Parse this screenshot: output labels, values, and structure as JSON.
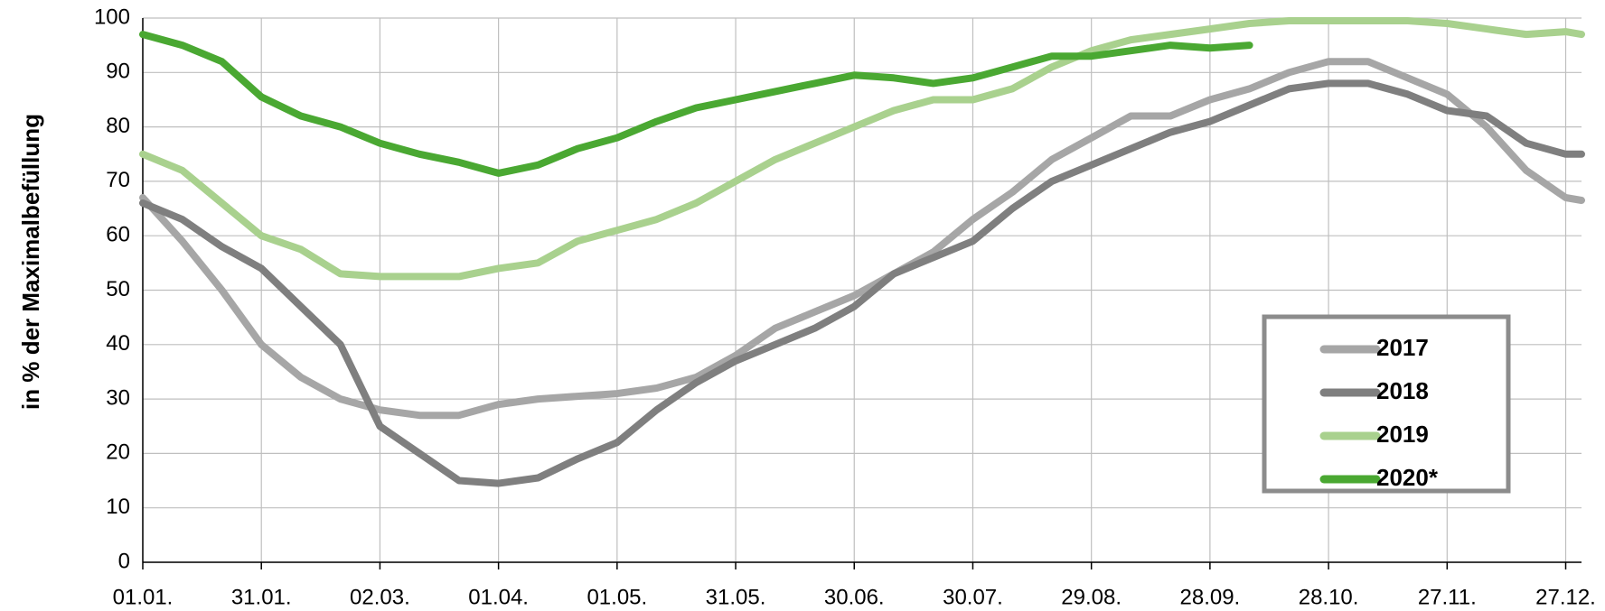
{
  "chart_data": {
    "type": "line",
    "y_label": "in % der Maximalbefüllung",
    "x": [
      0,
      10,
      20,
      30,
      40,
      50,
      60,
      70,
      80,
      90,
      100,
      110,
      120,
      130,
      140,
      150,
      160,
      170,
      180,
      190,
      200,
      210,
      220,
      230,
      240,
      250,
      260,
      270,
      280,
      290,
      300,
      310,
      320,
      330,
      340,
      350,
      360,
      364
    ],
    "series": [
      {
        "name": "2017",
        "color": "#a6a6a6",
        "values": [
          67,
          59,
          50,
          40,
          34,
          30,
          28,
          27,
          27,
          29,
          30,
          30.5,
          31,
          32,
          34,
          38,
          43,
          46,
          49,
          53,
          57,
          63,
          68,
          74,
          78,
          82,
          82,
          85,
          87,
          90,
          92,
          92,
          89,
          86,
          80,
          72,
          67,
          66.5
        ]
      },
      {
        "name": "2018",
        "color": "#7f7f7f",
        "values": [
          66,
          63,
          58,
          54,
          47,
          40,
          25,
          20,
          15,
          14.5,
          15.5,
          19,
          22,
          28,
          33,
          37,
          40,
          43,
          47,
          53,
          56,
          59,
          65,
          70,
          73,
          76,
          79,
          81,
          84,
          87,
          88,
          88,
          86,
          83,
          82,
          77,
          75,
          75
        ]
      },
      {
        "name": "2019",
        "color": "#a9d18e",
        "values": [
          75,
          72,
          66,
          60,
          57.5,
          53,
          52.5,
          52.5,
          52.5,
          54,
          55,
          59,
          61,
          63,
          66,
          70,
          74,
          77,
          80,
          83,
          85,
          85,
          87,
          91,
          94,
          96,
          97,
          98,
          99,
          99.5,
          99.5,
          99.5,
          99.5,
          99,
          98,
          97,
          97.5,
          97
        ]
      },
      {
        "name": "2020*",
        "color": "#4aa832",
        "values": [
          97,
          95,
          92,
          85.5,
          82,
          80,
          77,
          75,
          73.5,
          71.5,
          73,
          76,
          78,
          81,
          83.5,
          85,
          86.5,
          88,
          89.5,
          89,
          88,
          89,
          91,
          93,
          93,
          94,
          95,
          94.5,
          95,
          null,
          null,
          null,
          null,
          null,
          null,
          null,
          null,
          null
        ]
      }
    ],
    "xlim": [
      0,
      364
    ],
    "xticks": [
      {
        "value": 0,
        "label": "01.01."
      },
      {
        "value": 30,
        "label": "31.01."
      },
      {
        "value": 60,
        "label": "02.03."
      },
      {
        "value": 90,
        "label": "01.04."
      },
      {
        "value": 120,
        "label": "01.05."
      },
      {
        "value": 150,
        "label": "31.05."
      },
      {
        "value": 180,
        "label": "30.06."
      },
      {
        "value": 210,
        "label": "30.07."
      },
      {
        "value": 240,
        "label": "29.08."
      },
      {
        "value": 270,
        "label": "28.09."
      },
      {
        "value": 300,
        "label": "28.10."
      },
      {
        "value": 330,
        "label": "27.11."
      },
      {
        "value": 360,
        "label": "27.12."
      }
    ],
    "ylim": [
      0,
      100
    ],
    "yticks": [
      0,
      10,
      20,
      30,
      40,
      50,
      60,
      70,
      80,
      90,
      100
    ],
    "grid": true,
    "legend": "bottom-right"
  }
}
